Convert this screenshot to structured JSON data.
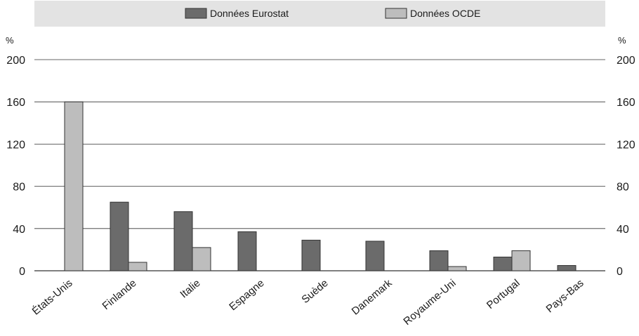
{
  "chart_data": {
    "type": "bar",
    "categories": [
      "États-Unis",
      "Finlande",
      "Italie",
      "Espagne",
      "Suède",
      "Danemark",
      "Royaume-Uni",
      "Portugal",
      "Pays-Bas"
    ],
    "series": [
      {
        "name": "Données Eurostat",
        "color": "#6b6b6b",
        "values": [
          null,
          65,
          56,
          37,
          29,
          28,
          19,
          13,
          5
        ]
      },
      {
        "name": "Données OCDE",
        "color": "#bdbdbd",
        "values": [
          160,
          8,
          22,
          null,
          null,
          null,
          4,
          19,
          null
        ]
      }
    ],
    "y_unit": "%",
    "ylim": [
      0,
      200
    ],
    "y_ticks": [
      0,
      40,
      80,
      120,
      160,
      200
    ],
    "grid": true,
    "legend_position": "top"
  }
}
